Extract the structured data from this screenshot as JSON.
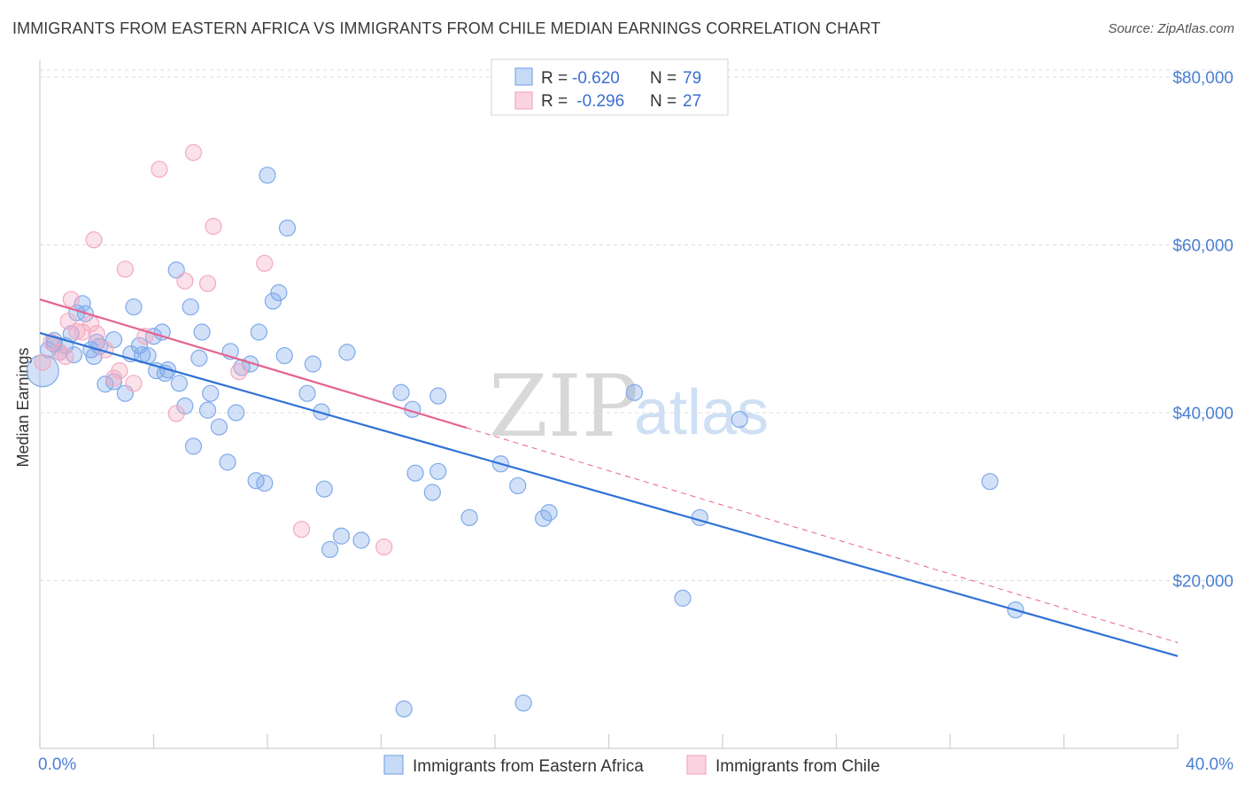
{
  "header": {
    "title": "IMMIGRANTS FROM EASTERN AFRICA VS IMMIGRANTS FROM CHILE MEDIAN EARNINGS CORRELATION CHART",
    "source": "Source: ZipAtlas.com"
  },
  "watermark": {
    "zip": "ZIP",
    "atlas": "atlas"
  },
  "legend": {
    "rows": [
      {
        "r_label": "R = ",
        "r_value": "-0.620",
        "n_label": "N = ",
        "n_value": "79"
      },
      {
        "r_label": "R = ",
        "r_value": " -0.296",
        "n_label": "N = ",
        "n_value": "27"
      }
    ]
  },
  "bottom_legend": {
    "items": [
      "Immigrants from Eastern Africa",
      "Immigrants from Chile"
    ]
  },
  "chart_data": {
    "type": "scatter",
    "title": "IMMIGRANTS FROM EASTERN AFRICA VS IMMIGRANTS FROM CHILE MEDIAN EARNINGS CORRELATION CHART",
    "xlabel": "",
    "ylabel": "Median Earnings",
    "xlim": [
      0,
      40
    ],
    "ylim": [
      0,
      82000
    ],
    "x_tick_labels": [
      "0.0%",
      "40.0%"
    ],
    "y_ticks": [
      20000,
      40000,
      60000,
      80000
    ],
    "y_tick_labels": [
      "$20,000",
      "$40,000",
      "$60,000",
      "$80,000"
    ],
    "grid": true,
    "legend_position": "top-center",
    "colors": {
      "eastern_africa": "#7eaaea",
      "eastern_africa_line": "#2f72d6",
      "chile": "#f4a9c0",
      "chile_line": "#e5638e"
    },
    "series": [
      {
        "name": "Immigrants from Eastern Africa",
        "color": "#7eaaea",
        "r": -0.62,
        "n": 79,
        "trend": {
          "x": [
            0.0,
            40.0
          ],
          "y": [
            49500,
            11000
          ]
        },
        "points": [
          [
            0.1,
            45000
          ],
          [
            0.3,
            47500
          ],
          [
            0.5,
            48200
          ],
          [
            0.7,
            47200
          ],
          [
            0.9,
            48000
          ],
          [
            1.1,
            49400
          ],
          [
            1.3,
            51900
          ],
          [
            1.5,
            53000
          ],
          [
            1.6,
            51800
          ],
          [
            1.8,
            47500
          ],
          [
            1.9,
            46700
          ],
          [
            2.1,
            47900
          ],
          [
            2.3,
            43400
          ],
          [
            2.6,
            43700
          ],
          [
            2.6,
            48700
          ],
          [
            3.0,
            42300
          ],
          [
            3.2,
            47000
          ],
          [
            3.3,
            52600
          ],
          [
            3.5,
            48000
          ],
          [
            3.6,
            46900
          ],
          [
            3.8,
            46800
          ],
          [
            4.0,
            49100
          ],
          [
            4.1,
            45000
          ],
          [
            4.3,
            49600
          ],
          [
            4.4,
            44700
          ],
          [
            4.5,
            45100
          ],
          [
            4.8,
            57000
          ],
          [
            4.9,
            43500
          ],
          [
            5.1,
            40800
          ],
          [
            5.3,
            52600
          ],
          [
            5.4,
            36000
          ],
          [
            5.6,
            46500
          ],
          [
            5.7,
            49600
          ],
          [
            5.9,
            40300
          ],
          [
            6.0,
            42300
          ],
          [
            6.3,
            38300
          ],
          [
            6.6,
            34100
          ],
          [
            6.7,
            47300
          ],
          [
            6.9,
            40000
          ],
          [
            7.1,
            45400
          ],
          [
            7.4,
            45800
          ],
          [
            7.6,
            31900
          ],
          [
            7.7,
            49600
          ],
          [
            7.9,
            31600
          ],
          [
            8.0,
            68300
          ],
          [
            8.2,
            53300
          ],
          [
            8.4,
            54300
          ],
          [
            8.6,
            46800
          ],
          [
            8.7,
            62000
          ],
          [
            9.4,
            42300
          ],
          [
            9.6,
            45800
          ],
          [
            9.9,
            40100
          ],
          [
            10.0,
            30900
          ],
          [
            10.2,
            23700
          ],
          [
            10.6,
            25300
          ],
          [
            10.8,
            47200
          ],
          [
            11.3,
            24800
          ],
          [
            12.7,
            42400
          ],
          [
            12.8,
            4700
          ],
          [
            13.1,
            40400
          ],
          [
            13.2,
            32800
          ],
          [
            13.8,
            30500
          ],
          [
            14.0,
            42000
          ],
          [
            14.0,
            33000
          ],
          [
            15.1,
            27500
          ],
          [
            16.2,
            33900
          ],
          [
            16.8,
            31300
          ],
          [
            17.0,
            5400
          ],
          [
            17.7,
            27400
          ],
          [
            17.9,
            28100
          ],
          [
            20.9,
            42400
          ],
          [
            22.6,
            17900
          ],
          [
            23.2,
            27500
          ],
          [
            24.6,
            39200
          ],
          [
            33.4,
            31800
          ],
          [
            34.3,
            16500
          ],
          [
            1.2,
            46900
          ],
          [
            2.0,
            48400
          ],
          [
            0.5,
            48600
          ]
        ]
      },
      {
        "name": "Immigrants from Chile",
        "color": "#f4a9c0",
        "r": -0.296,
        "n": 27,
        "trend": {
          "x": [
            0.0,
            15.0
          ],
          "y": [
            53500,
            38200
          ]
        },
        "trend_dashed": {
          "x": [
            15.0,
            40.0
          ],
          "y": [
            38200,
            12600
          ]
        },
        "points": [
          [
            0.1,
            46000
          ],
          [
            0.4,
            48400
          ],
          [
            0.7,
            47200
          ],
          [
            0.9,
            46700
          ],
          [
            1.0,
            50900
          ],
          [
            1.1,
            53500
          ],
          [
            1.3,
            49700
          ],
          [
            1.5,
            49600
          ],
          [
            1.8,
            50600
          ],
          [
            1.9,
            60600
          ],
          [
            2.0,
            49400
          ],
          [
            2.3,
            47500
          ],
          [
            2.6,
            44100
          ],
          [
            2.8,
            45000
          ],
          [
            3.0,
            57100
          ],
          [
            3.3,
            43500
          ],
          [
            3.7,
            49100
          ],
          [
            4.2,
            69000
          ],
          [
            4.8,
            39900
          ],
          [
            5.1,
            55700
          ],
          [
            5.4,
            71000
          ],
          [
            5.9,
            55400
          ],
          [
            6.1,
            62200
          ],
          [
            7.0,
            44900
          ],
          [
            7.9,
            57800
          ],
          [
            9.2,
            26100
          ],
          [
            12.1,
            24000
          ]
        ]
      }
    ]
  }
}
